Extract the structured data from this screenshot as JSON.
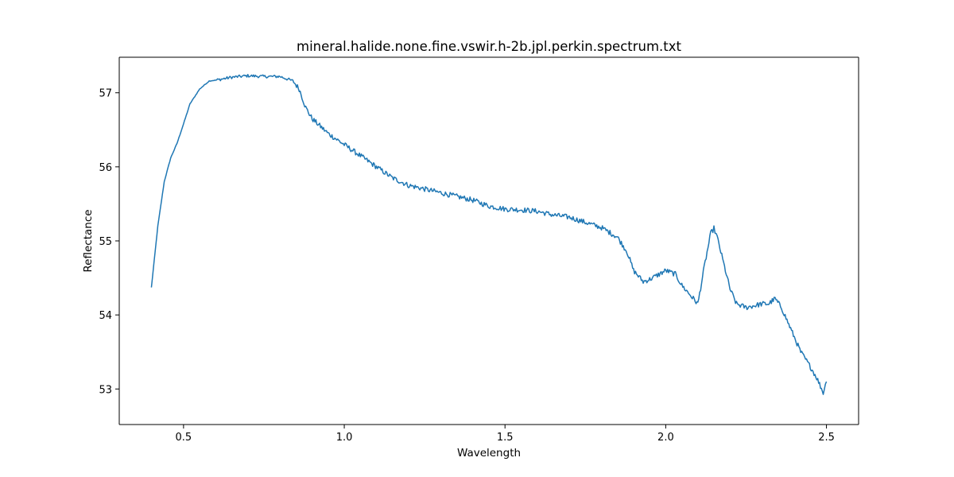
{
  "chart_data": {
    "type": "line",
    "title": "mineral.halide.none.fine.vswir.h-2b.jpl.perkin.spectrum.txt",
    "xlabel": "Wavelength",
    "ylabel": "Reflectance",
    "xlim": [
      0.3,
      2.6
    ],
    "ylim": [
      52.52,
      57.48
    ],
    "x_ticks": [
      "0.5",
      "1.0",
      "1.5",
      "2.0",
      "2.5"
    ],
    "y_ticks": [
      "53",
      "54",
      "55",
      "56",
      "57"
    ],
    "grid": false,
    "legend": "none",
    "line_color": "#1f77b4",
    "series": [
      {
        "x": [
          0.4,
          0.42,
          0.44,
          0.46,
          0.48,
          0.5,
          0.52,
          0.55,
          0.58,
          0.6,
          0.65,
          0.7,
          0.75,
          0.8,
          0.84,
          0.86,
          0.88,
          0.9,
          0.95,
          1.0,
          1.05,
          1.1,
          1.15,
          1.2,
          1.25,
          1.3,
          1.35,
          1.4,
          1.45,
          1.5,
          1.55,
          1.6,
          1.65,
          1.7,
          1.75,
          1.8,
          1.85,
          1.88,
          1.9,
          1.93,
          1.95,
          1.98,
          2.0,
          2.03,
          2.05,
          2.08,
          2.1,
          2.12,
          2.14,
          2.15,
          2.16,
          2.18,
          2.2,
          2.22,
          2.25,
          2.28,
          2.3,
          2.32,
          2.34,
          2.36,
          2.38,
          2.4,
          2.42,
          2.45,
          2.47,
          2.49,
          2.5
        ],
        "y": [
          54.37,
          55.2,
          55.8,
          56.12,
          56.32,
          56.58,
          56.85,
          57.05,
          57.16,
          57.17,
          57.21,
          57.23,
          57.22,
          57.22,
          57.16,
          57.05,
          56.8,
          56.65,
          56.45,
          56.3,
          56.15,
          56.0,
          55.85,
          55.75,
          55.7,
          55.65,
          55.6,
          55.55,
          55.47,
          55.43,
          55.42,
          55.4,
          55.35,
          55.32,
          55.25,
          55.18,
          55.05,
          54.85,
          54.6,
          54.45,
          54.48,
          54.55,
          54.6,
          54.55,
          54.4,
          54.25,
          54.15,
          54.65,
          55.1,
          55.17,
          55.05,
          54.7,
          54.35,
          54.15,
          54.1,
          54.13,
          54.15,
          54.15,
          54.22,
          54.1,
          53.9,
          53.7,
          53.5,
          53.3,
          53.15,
          52.95,
          53.1
        ]
      }
    ]
  }
}
